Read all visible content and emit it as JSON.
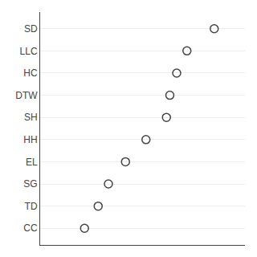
{
  "chart_data": {
    "type": "scatter",
    "categories": [
      "CC",
      "TD",
      "SG",
      "EL",
      "HH",
      "SH",
      "DTW",
      "HC",
      "LLC",
      "SD"
    ],
    "values": [
      0.028,
      0.032,
      0.035,
      0.04,
      0.046,
      0.052,
      0.053,
      0.055,
      0.058,
      0.066
    ],
    "xlim": [
      0.015,
      0.075
    ],
    "color": "#444444",
    "marker": "circle",
    "grid": true,
    "tick_labels": "y"
  }
}
